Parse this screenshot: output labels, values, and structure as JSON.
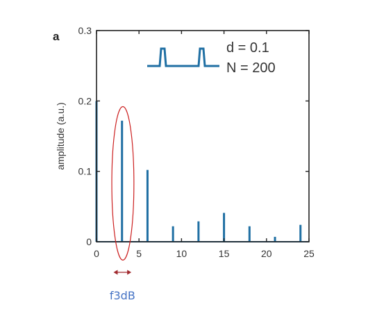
{
  "panel_label": "a",
  "chart_data": {
    "type": "bar",
    "ylabel": "amplitude (a.u.)",
    "xlabel": "",
    "xlim": [
      0,
      25
    ],
    "ylim": [
      0,
      0.3
    ],
    "xticks": [
      "0",
      "5",
      "10",
      "15",
      "20",
      "25"
    ],
    "yticks": [
      "0",
      "0.1",
      "0.2",
      "0.3"
    ],
    "series": [
      {
        "x": [
          0,
          3,
          6,
          9,
          12,
          15,
          18,
          21,
          24
        ],
        "values": [
          0.2,
          0.172,
          0.102,
          0.022,
          0.029,
          0.041,
          0.022,
          0.007,
          0.024
        ]
      }
    ],
    "legend": [
      "d = 0.1",
      "N = 200"
    ],
    "annotation": {
      "label": "f3dB",
      "ellipse_center": [
        3.1,
        0.083
      ],
      "ellipse_radii": [
        1.3,
        0.109
      ],
      "arrow_range": [
        2.0,
        4.1
      ]
    },
    "colors": {
      "series": "#1f6fa3",
      "ellipse": "#cc1f1f",
      "arrow": "#a0282d",
      "annotation_text": "#4472c4"
    },
    "grid": false
  }
}
